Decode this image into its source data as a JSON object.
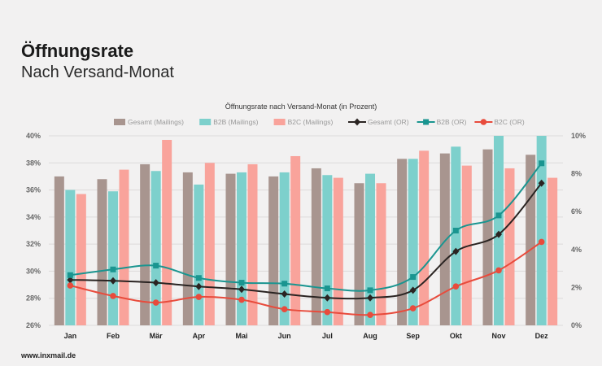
{
  "header": {
    "title": "Öffnungsrate",
    "subtitle": "Nach Versand-Monat"
  },
  "footer": {
    "source": "www.inxmail.de"
  },
  "chart_data": {
    "type": "bar",
    "title": "Öffnungsrate nach Versand-Monat (in Prozent)",
    "categories": [
      "Jan",
      "Feb",
      "Mär",
      "Apr",
      "Mai",
      "Jun",
      "Jul",
      "Aug",
      "Sep",
      "Okt",
      "Nov",
      "Dez"
    ],
    "y_left": {
      "ylim": [
        26,
        40
      ],
      "ticks": [
        26,
        28,
        30,
        32,
        34,
        36,
        38,
        40
      ],
      "tick_labels": [
        "26%",
        "28%",
        "30%",
        "32%",
        "34%",
        "36%",
        "38%",
        "40%"
      ]
    },
    "y_right": {
      "ylim": [
        0,
        10
      ],
      "ticks": [
        0,
        2,
        4,
        6,
        8,
        10
      ],
      "tick_labels": [
        "0%",
        "2%",
        "4%",
        "6%",
        "8%",
        "10%"
      ]
    },
    "grid": true,
    "legend_position": "top",
    "series": [
      {
        "name": "Gesamt (Mailings)",
        "kind": "bar",
        "axis": "left",
        "color": "#a8958f",
        "values": [
          37.0,
          36.8,
          37.9,
          37.3,
          37.2,
          37.0,
          37.6,
          36.5,
          38.3,
          38.7,
          39.0,
          38.6
        ]
      },
      {
        "name": "B2B (Mailings)",
        "kind": "bar",
        "axis": "left",
        "color": "#7dd0cc",
        "values": [
          36.0,
          35.9,
          37.4,
          36.4,
          37.3,
          37.3,
          37.1,
          37.2,
          38.3,
          39.2,
          40.0,
          40.0
        ]
      },
      {
        "name": "B2C (Mailings)",
        "kind": "bar",
        "axis": "left",
        "color": "#f9a39b",
        "values": [
          35.7,
          37.5,
          39.7,
          38.0,
          37.9,
          38.5,
          36.9,
          36.5,
          38.9,
          37.8,
          37.6,
          36.9
        ]
      },
      {
        "name": "Gesamt (OR)",
        "kind": "line",
        "axis": "right",
        "color": "#2a2422",
        "marker": "diamond",
        "values": [
          2.4,
          2.35,
          2.25,
          2.05,
          1.9,
          1.65,
          1.45,
          1.45,
          1.85,
          3.9,
          4.8,
          7.5
        ]
      },
      {
        "name": "B2B (OR)",
        "kind": "line",
        "axis": "right",
        "color": "#1a9590",
        "marker": "square",
        "values": [
          2.65,
          2.95,
          3.15,
          2.5,
          2.25,
          2.2,
          1.95,
          1.85,
          2.55,
          5.0,
          5.8,
          8.55
        ]
      },
      {
        "name": "B2C (OR)",
        "kind": "line",
        "axis": "right",
        "color": "#e84b3c",
        "marker": "circle",
        "values": [
          2.1,
          1.55,
          1.2,
          1.5,
          1.35,
          0.85,
          0.7,
          0.55,
          0.9,
          2.05,
          2.9,
          4.4
        ]
      }
    ]
  }
}
